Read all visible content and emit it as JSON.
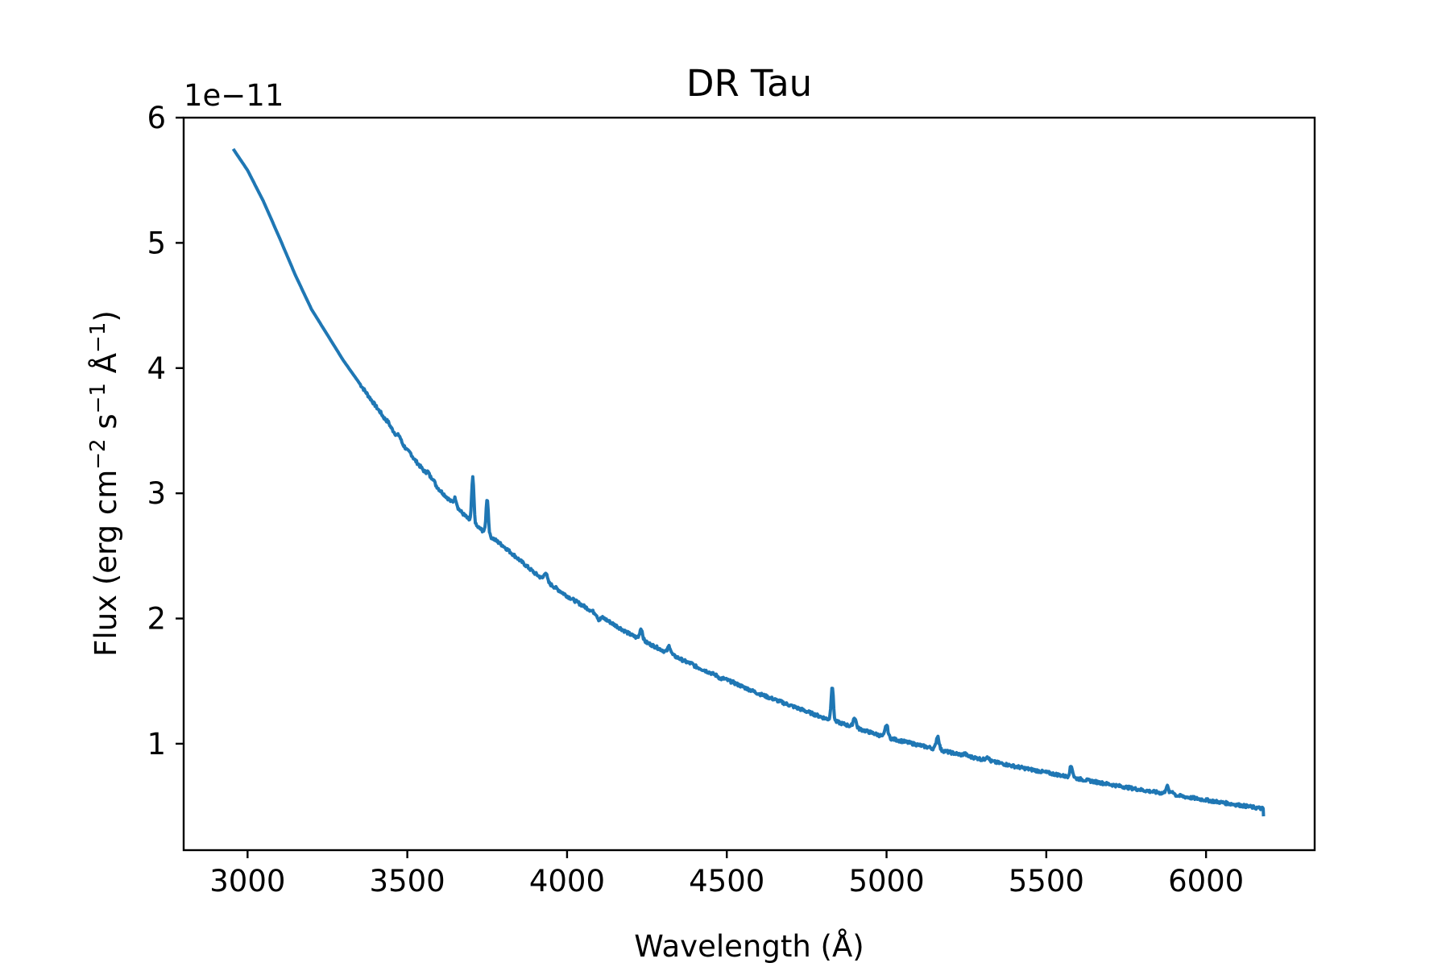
{
  "chart_data": {
    "type": "line",
    "title": "DR Tau",
    "xlabel": "Wavelength (Å)",
    "ylabel": {
      "prefix": "Flux (erg cm",
      "exp1": "−2",
      "mid": " s",
      "exp2": "−1",
      "mid2": " Å",
      "exp3": "−1",
      "suffix": ")"
    },
    "y_offset_text": "1e−11",
    "xlim": [
      2800,
      6340
    ],
    "ylim": [
      0.15,
      6.0
    ],
    "x_ticks": [
      3000,
      3500,
      4000,
      4500,
      5000,
      5500,
      6000
    ],
    "y_ticks": [
      1,
      2,
      3,
      4,
      5,
      6
    ],
    "grid": false,
    "color": "#1f77b4",
    "series": [
      {
        "continuum": {
          "x": [
            2955,
            3000,
            3050,
            3100,
            3150,
            3200,
            3300,
            3400,
            3500,
            3600,
            3700,
            3800,
            3900,
            4000,
            4200,
            4400,
            4600,
            4800,
            5000,
            5200,
            5400,
            5600,
            5800,
            6000,
            6180
          ],
          "y": [
            5.75,
            5.58,
            5.33,
            5.04,
            4.74,
            4.47,
            4.06,
            3.7,
            3.34,
            3.03,
            2.77,
            2.58,
            2.36,
            2.18,
            1.87,
            1.62,
            1.4,
            1.21,
            1.05,
            0.93,
            0.82,
            0.72,
            0.63,
            0.55,
            0.48
          ]
        },
        "lines": [
          {
            "x": 3415,
            "y": 3.65
          },
          {
            "x": 3440,
            "y": 3.57
          },
          {
            "x": 3475,
            "y": 3.46
          },
          {
            "x": 3510,
            "y": 3.32
          },
          {
            "x": 3565,
            "y": 3.17
          },
          {
            "x": 3580,
            "y": 3.12
          },
          {
            "x": 3650,
            "y": 2.96
          },
          {
            "x": 3705,
            "y": 3.12
          },
          {
            "x": 3750,
            "y": 2.96
          },
          {
            "x": 3933,
            "y": 2.37
          },
          {
            "x": 4100,
            "y": 1.99
          },
          {
            "x": 4232,
            "y": 1.92
          },
          {
            "x": 4320,
            "y": 1.78
          },
          {
            "x": 4390,
            "y": 1.64
          },
          {
            "x": 4480,
            "y": 1.52
          },
          {
            "x": 4520,
            "y": 1.49
          },
          {
            "x": 4830,
            "y": 1.46
          },
          {
            "x": 4900,
            "y": 1.21
          },
          {
            "x": 5000,
            "y": 1.15
          },
          {
            "x": 5160,
            "y": 1.06
          },
          {
            "x": 5245,
            "y": 0.92
          },
          {
            "x": 5315,
            "y": 0.9
          },
          {
            "x": 5578,
            "y": 0.82
          },
          {
            "x": 5878,
            "y": 0.66
          },
          {
            "x": 5895,
            "y": 0.62
          }
        ]
      }
    ]
  }
}
